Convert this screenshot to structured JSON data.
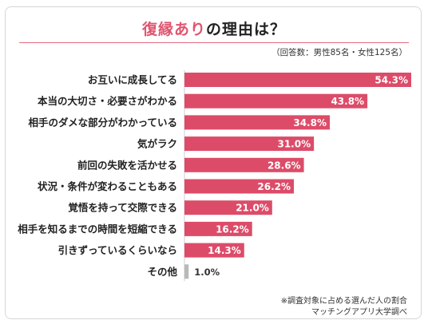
{
  "header": {
    "title_highlight": "復縁あり",
    "title_rest": "の理由は？",
    "respondents": "（回答数：男性85名・女性125名）"
  },
  "colors": {
    "bar": "#dc4c69",
    "bar_other": "#b9b9b9",
    "accent": "#e0556f"
  },
  "chart_data": {
    "type": "bar",
    "orientation": "horizontal",
    "categories": [
      "お互いに成長してる",
      "本当の大切さ・必要さがわかる",
      "相手のダメな部分がわかっている",
      "気がラク",
      "前回の失敗を活かせる",
      "状況・条件が変わることもある",
      "覚悟を持って交際できる",
      "相手を知るまでの時間を短縮できる",
      "引きずっているくらいなら",
      "その他"
    ],
    "values": [
      54.3,
      43.8,
      34.8,
      31.0,
      28.6,
      26.2,
      21.0,
      16.2,
      14.3,
      1.0
    ],
    "value_labels": [
      "54.3%",
      "43.8%",
      "34.8%",
      "31.0%",
      "28.6%",
      "26.2%",
      "21.0%",
      "16.2%",
      "14.3%",
      "1.0%"
    ],
    "xlim": [
      0,
      54.3
    ],
    "grid": false
  },
  "footer": {
    "note": "※調査対象に占める選んだ人の割合",
    "source": "マッチングアプリ大学調べ"
  }
}
